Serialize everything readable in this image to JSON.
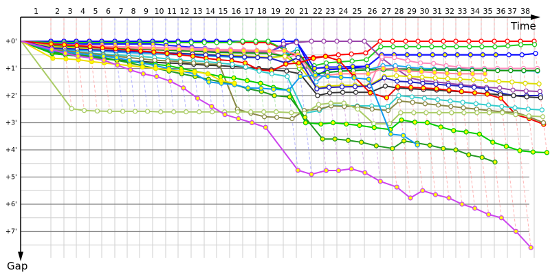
{
  "chart_data": {
    "type": "line",
    "xlabel": "Time",
    "ylabel": "Gap",
    "x_tick_labels": [
      "1",
      "2",
      "3",
      "4",
      "5",
      "6",
      "7",
      "8",
      "9",
      "10",
      "11",
      "12",
      "13",
      "14",
      "15",
      "16",
      "17",
      "18",
      "19",
      "20",
      "21",
      "22",
      "23",
      "24",
      "25",
      "26",
      "27",
      "28",
      "29",
      "30",
      "31",
      "32",
      "33",
      "34",
      "35",
      "36",
      "37",
      "38"
    ],
    "y_tick_labels": [
      "+0'",
      "+1'",
      "+2'",
      "+3'",
      "+4'",
      "+5'",
      "+6'",
      "+7'"
    ],
    "y_unit": "minutes",
    "ylim": [
      0,
      7.9
    ],
    "y_axis_inverted": true,
    "grid": true,
    "x_values_laps": [
      0,
      1,
      2,
      3,
      4,
      5,
      6,
      7,
      8,
      9,
      10,
      11,
      12,
      13,
      14,
      15,
      16,
      17,
      18,
      19,
      20,
      21,
      22,
      23,
      24,
      25,
      26,
      27,
      28,
      29,
      30,
      31,
      32,
      33,
      34,
      35,
      36,
      37,
      38
    ],
    "series": [
      {
        "color": "#ff0000",
        "marker_fill": "#ffffff",
        "values": [
          0,
          0,
          0,
          0,
          0,
          0,
          0,
          0,
          0,
          0,
          0,
          0,
          0,
          0,
          0,
          0.03,
          0.04,
          0.05,
          0.05,
          0.3,
          0.6,
          0.6,
          0.55,
          0.5,
          0.47,
          0.43,
          0,
          0,
          0,
          0,
          0,
          0,
          0,
          0,
          0,
          0,
          0,
          0,
          0
        ]
      },
      {
        "color": "#0000ff",
        "marker_fill": "#ffffff",
        "values": [
          0,
          0,
          0,
          0,
          0,
          0,
          0,
          0,
          0,
          0,
          0,
          0,
          0,
          0,
          0,
          0,
          0,
          0,
          0,
          0,
          0,
          1.3,
          1.05,
          1.02,
          0.98,
          0.93,
          0.5,
          0.5,
          0.5,
          0.5,
          0.5,
          0.5,
          0.5,
          0.5,
          0.5,
          0.5,
          0.5,
          0.5,
          0.45
        ]
      },
      {
        "color": "#22cc22",
        "marker_fill": "#ffffff",
        "values": [
          0,
          0.05,
          0.05,
          0.05,
          0.05,
          0.05,
          0.05,
          0.05,
          0.05,
          0.05,
          0.05,
          0.05,
          0.05,
          0.05,
          0.05,
          0.05,
          0,
          0,
          0,
          0.3,
          1.0,
          0.9,
          0.8,
          0.76,
          0.73,
          0.68,
          0.2,
          0.2,
          0.2,
          0.2,
          0.2,
          0.2,
          0.2,
          0.2,
          0.2,
          0.2,
          0.17,
          0.13,
          0.12
        ]
      },
      {
        "color": "#1a1aff",
        "marker_fill": "#ffff00",
        "values": [
          0,
          0.1,
          0.1,
          0.1,
          0.1,
          0.1,
          0.1,
          0.1,
          0.1,
          0.1,
          0.15,
          0.18,
          0.22,
          0.26,
          0.3,
          0.35,
          0.38,
          0.4,
          0.4,
          0.15,
          0,
          1.0,
          0.95,
          0.95,
          0.93,
          0.92,
          0.5,
          0.5,
          0.5,
          0.5,
          0.5,
          0.5,
          0.5,
          0.5,
          0.5,
          0.5,
          null,
          null,
          null
        ]
      },
      {
        "color": "#9944aa",
        "marker_fill": "#ffffff",
        "values": [
          0,
          0.2,
          0.22,
          0.24,
          0.26,
          0.28,
          0.3,
          0.3,
          0.3,
          0.32,
          0.32,
          0.34,
          0.34,
          0.36,
          0.36,
          0.38,
          0.38,
          0.4,
          0.4,
          0.1,
          0.05,
          0,
          0,
          0,
          0,
          0,
          0.63,
          1.0,
          1.35,
          1.45,
          1.5,
          1.55,
          1.6,
          1.65,
          1.7,
          1.72,
          1.8,
          1.83,
          1.85
        ]
      },
      {
        "color": "#ff88bb",
        "marker_fill": "#ffffff",
        "values": [
          0,
          0.1,
          0.12,
          0.14,
          0.16,
          0.18,
          0.2,
          0.2,
          0.22,
          0.22,
          0.24,
          0.24,
          0.26,
          0.28,
          0.3,
          0.3,
          0.32,
          0.34,
          0.35,
          0.6,
          0.5,
          1.75,
          1.7,
          1.68,
          1.68,
          1.65,
          0.58,
          0.6,
          0.72,
          0.8,
          0.82,
          0.9,
          0.95,
          1.0,
          1.0,
          1.0,
          1.0,
          1.0,
          1.0
        ]
      },
      {
        "color": "#22aaee",
        "marker_fill": "#ffffff",
        "values": [
          0,
          0.3,
          0.32,
          0.34,
          0.36,
          0.38,
          0.4,
          0.42,
          0.44,
          0.46,
          0.48,
          0.5,
          0.52,
          0.54,
          0.56,
          0.58,
          0.6,
          0.6,
          0.6,
          0.5,
          0.3,
          1.5,
          1.15,
          1.1,
          1.08,
          1.05,
          0.9,
          0.9,
          0.95,
          1.0,
          1.02,
          1.04,
          1.05,
          1.05,
          1.06,
          1.07,
          1.08,
          1.09,
          1.1
        ]
      },
      {
        "color": "#119911",
        "marker_fill": "#ffffff",
        "values": [
          0,
          0.15,
          0.17,
          0.19,
          0.21,
          0.23,
          0.25,
          0.27,
          0.29,
          0.31,
          0.33,
          0.35,
          0.37,
          0.39,
          0.41,
          0.42,
          0.43,
          0.44,
          0.45,
          0.55,
          0.4,
          1.2,
          1.15,
          1.1,
          1.08,
          1.05,
          1.05,
          1.05,
          1.05,
          1.06,
          1.06,
          1.06,
          1.07,
          1.07,
          1.07,
          1.08,
          1.08,
          1.08,
          1.08
        ]
      },
      {
        "color": "#ff8899",
        "marker_fill": "#ffff00",
        "values": [
          0,
          0.12,
          0.14,
          0.16,
          0.18,
          0.2,
          0.22,
          0.24,
          0.26,
          0.28,
          0.3,
          0.3,
          0.32,
          0.32,
          0.34,
          0.34,
          0.35,
          0.35,
          0.36,
          0.35,
          0.5,
          1.3,
          1.25,
          1.2,
          1.2,
          1.2,
          1.0,
          1.05,
          1.1,
          1.12,
          1.15,
          1.18,
          1.2,
          1.2,
          1.2,
          null,
          null,
          null,
          null
        ]
      },
      {
        "color": "#dddd00",
        "marker_fill": "#ffffff",
        "values": [
          0,
          0.2,
          0.22,
          0.25,
          0.28,
          0.3,
          0.33,
          0.36,
          0.38,
          0.4,
          0.42,
          0.44,
          0.46,
          0.48,
          0.5,
          0.52,
          0.54,
          0.57,
          0.6,
          0.55,
          0.9,
          1.7,
          1.65,
          1.62,
          1.62,
          1.62,
          1.3,
          1.27,
          1.3,
          1.32,
          1.35,
          1.38,
          1.4,
          1.42,
          1.45,
          1.48,
          1.5,
          1.55,
          1.57
        ]
      },
      {
        "color": "#2222bb",
        "marker_fill": "#ffffff",
        "values": [
          0,
          0.25,
          0.27,
          0.29,
          0.31,
          0.33,
          0.35,
          0.37,
          0.39,
          0.41,
          0.43,
          0.45,
          0.47,
          0.5,
          0.52,
          0.55,
          0.58,
          0.6,
          0.62,
          0.8,
          0.6,
          1.75,
          1.7,
          1.68,
          1.67,
          1.65,
          1.35,
          1.47,
          1.5,
          1.55,
          1.58,
          1.62,
          1.65,
          1.7,
          1.75,
          1.9,
          2.0,
          2.0,
          2.0
        ]
      },
      {
        "color": "#333333",
        "marker_fill": "#ffffff",
        "values": [
          0,
          0.45,
          0.5,
          0.55,
          0.6,
          0.65,
          0.68,
          0.72,
          0.75,
          0.78,
          0.8,
          0.82,
          0.85,
          0.88,
          0.9,
          0.93,
          0.96,
          1.0,
          1.05,
          1.1,
          1.2,
          2.0,
          1.9,
          1.88,
          1.88,
          1.88,
          1.65,
          1.72,
          1.75,
          1.78,
          1.8,
          1.83,
          1.86,
          1.9,
          1.93,
          1.97,
          2.0,
          2.05,
          2.08
        ]
      },
      {
        "color": "#ee0000",
        "marker_fill": "#ffff00",
        "values": [
          0,
          0.1,
          0.13,
          0.16,
          0.2,
          0.24,
          0.28,
          0.32,
          0.36,
          0.4,
          0.45,
          0.5,
          0.55,
          0.63,
          0.68,
          0.72,
          0.8,
          1.05,
          1.09,
          0.84,
          0.8,
          0.63,
          0.56,
          0.71,
          1.3,
          1.9,
          2.08,
          1.67,
          1.7,
          1.72,
          1.75,
          1.8,
          1.85,
          1.9,
          1.95,
          2.1,
          2.7,
          2.85,
          3.06
        ]
      },
      {
        "color": "#33cccc",
        "marker_fill": "#ffffff",
        "values": [
          0,
          0.35,
          0.38,
          0.41,
          0.44,
          0.47,
          0.5,
          0.53,
          0.56,
          0.6,
          0.65,
          0.7,
          0.72,
          0.75,
          0.8,
          0.85,
          0.95,
          1.1,
          1.2,
          1.3,
          2.65,
          2.55,
          2.35,
          2.38,
          2.38,
          2.38,
          2.4,
          2.0,
          2.05,
          2.1,
          2.15,
          2.2,
          2.25,
          2.3,
          2.35,
          2.4,
          2.45,
          2.5,
          2.53
        ]
      },
      {
        "color": "#888844",
        "marker_fill": "#ffffff",
        "values": [
          0,
          0.3,
          0.35,
          0.4,
          0.45,
          0.5,
          0.55,
          0.6,
          0.65,
          0.7,
          0.72,
          0.75,
          0.8,
          0.84,
          0.85,
          2.5,
          2.65,
          2.78,
          2.8,
          2.85,
          2.55,
          2.5,
          2.38,
          2.4,
          2.4,
          2.5,
          2.55,
          2.2,
          2.25,
          2.3,
          2.35,
          2.4,
          2.45,
          2.5,
          2.55,
          2.6,
          2.62,
          2.78,
          3.0
        ]
      },
      {
        "color": "#aacc66",
        "marker_fill": "#ffffff",
        "values": [
          0,
          null,
          2.48,
          2.55,
          2.57,
          2.58,
          2.58,
          2.58,
          2.58,
          2.6,
          2.6,
          2.6,
          2.6,
          2.6,
          2.6,
          2.6,
          2.6,
          2.6,
          2.6,
          2.63,
          2.65,
          2.33,
          2.28,
          2.28,
          2.5,
          3.04,
          3.04,
          2.63,
          2.63,
          2.63,
          2.63,
          2.63,
          2.63,
          2.63,
          2.63,
          2.63,
          2.7,
          2.75,
          2.78
        ]
      },
      {
        "color": "#00cc00",
        "marker_fill": "#ffff00",
        "values": [
          0,
          0.45,
          0.5,
          0.55,
          0.6,
          0.65,
          0.7,
          0.75,
          0.8,
          0.85,
          0.9,
          1.0,
          1.1,
          1.2,
          1.3,
          1.35,
          1.45,
          1.55,
          1.7,
          1.8,
          3.0,
          3.05,
          3.0,
          3.05,
          3.1,
          3.18,
          3.25,
          2.9,
          2.98,
          3.0,
          3.16,
          3.29,
          3.34,
          3.42,
          3.72,
          3.87,
          4.03,
          4.08,
          4.1
        ]
      },
      {
        "color": "#229922",
        "marker_fill": "#ffff00",
        "values": [
          0,
          0.4,
          0.45,
          0.5,
          0.55,
          0.6,
          0.7,
          0.8,
          0.9,
          1.0,
          1.1,
          1.2,
          1.3,
          1.4,
          1.5,
          1.6,
          1.75,
          1.85,
          2.0,
          2.05,
          2.8,
          3.6,
          3.6,
          3.65,
          3.72,
          3.85,
          3.95,
          3.67,
          3.75,
          3.83,
          3.95,
          4.0,
          4.18,
          4.28,
          4.45,
          null,
          null,
          null,
          null
        ]
      },
      {
        "color": "#1199ee",
        "marker_fill": "#ffff00",
        "values": [
          0,
          0.35,
          0.4,
          0.45,
          0.5,
          0.55,
          0.6,
          0.7,
          0.8,
          0.9,
          1.0,
          1.1,
          1.2,
          1.5,
          1.55,
          1.6,
          1.72,
          1.73,
          1.77,
          1.8,
          1.3,
          1.25,
          1.3,
          1.33,
          1.35,
          1.4,
          3.42,
          3.47,
          3.82,
          null,
          null,
          null,
          null,
          null,
          null,
          null,
          null,
          null,
          null
        ]
      },
      {
        "color": "#eedd00",
        "marker_fill": "#ffff00",
        "values": [
          0,
          0.63,
          0.65,
          0.68,
          0.75,
          0.8,
          0.85,
          0.9,
          0.95,
          1.0,
          1.05,
          1.1,
          1.12,
          1.2,
          1.45,
          1.55,
          null,
          null,
          null,
          null,
          null,
          null,
          null,
          null,
          null,
          null,
          null,
          null,
          null,
          null,
          null,
          null,
          null,
          null,
          null,
          null,
          null,
          null,
          null
        ]
      },
      {
        "color": "#cc44ee",
        "marker_fill": "#ffff00",
        "values": [
          0,
          0.3,
          0.45,
          0.55,
          0.62,
          0.7,
          0.88,
          1.06,
          1.2,
          1.3,
          1.47,
          1.72,
          2.1,
          2.4,
          2.7,
          2.85,
          3.0,
          3.17,
          null,
          4.75,
          4.9,
          4.76,
          4.76,
          4.7,
          4.84,
          5.16,
          5.37,
          5.77,
          5.5,
          5.65,
          5.77,
          6.0,
          6.15,
          6.38,
          6.5,
          7.0,
          7.6,
          null,
          null
        ]
      }
    ],
    "lap_line_colors": {
      "1-5": "#ff9999",
      "6-14": "#9999ff",
      "15-18": "#99dd99",
      "19-20": "#9999ff",
      "21-25": "#cc99dd",
      "26-38": "#ff9999"
    }
  }
}
